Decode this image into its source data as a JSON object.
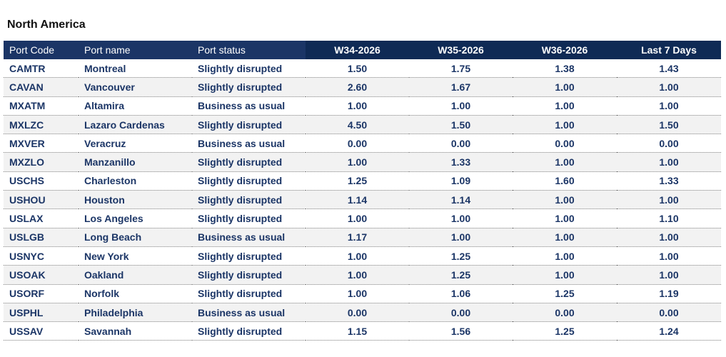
{
  "region": {
    "title": "North America"
  },
  "table": {
    "columns": [
      "Port Code",
      "Port name",
      "Port status",
      "W34-2026",
      "W35-2026",
      "W36-2026",
      "Last 7 Days"
    ],
    "rows": [
      {
        "code": "CAMTR",
        "name": "Montreal",
        "status": "Slightly disrupted",
        "w34": "1.50",
        "w35": "1.75",
        "w36": "1.38",
        "last7": "1.43"
      },
      {
        "code": "CAVAN",
        "name": "Vancouver",
        "status": "Slightly disrupted",
        "w34": "2.60",
        "w35": "1.67",
        "w36": "1.00",
        "last7": "1.00"
      },
      {
        "code": "MXATM",
        "name": "Altamira",
        "status": "Business as usual",
        "w34": "1.00",
        "w35": "1.00",
        "w36": "1.00",
        "last7": "1.00"
      },
      {
        "code": "MXLZC",
        "name": "Lazaro Cardenas",
        "status": "Slightly disrupted",
        "w34": "4.50",
        "w35": "1.50",
        "w36": "1.00",
        "last7": "1.50"
      },
      {
        "code": "MXVER",
        "name": "Veracruz",
        "status": "Business as usual",
        "w34": "0.00",
        "w35": "0.00",
        "w36": "0.00",
        "last7": "0.00"
      },
      {
        "code": "MXZLO",
        "name": "Manzanillo",
        "status": "Slightly disrupted",
        "w34": "1.00",
        "w35": "1.33",
        "w36": "1.00",
        "last7": "1.00"
      },
      {
        "code": "USCHS",
        "name": "Charleston",
        "status": "Slightly disrupted",
        "w34": "1.25",
        "w35": "1.09",
        "w36": "1.60",
        "last7": "1.33"
      },
      {
        "code": "USHOU",
        "name": "Houston",
        "status": "Slightly disrupted",
        "w34": "1.14",
        "w35": "1.14",
        "w36": "1.00",
        "last7": "1.00"
      },
      {
        "code": "USLAX",
        "name": "Los Angeles",
        "status": "Slightly disrupted",
        "w34": "1.00",
        "w35": "1.00",
        "w36": "1.00",
        "last7": "1.10"
      },
      {
        "code": "USLGB",
        "name": "Long Beach",
        "status": "Business as usual",
        "w34": "1.17",
        "w35": "1.00",
        "w36": "1.00",
        "last7": "1.00"
      },
      {
        "code": "USNYC",
        "name": "New York",
        "status": "Slightly disrupted",
        "w34": "1.00",
        "w35": "1.25",
        "w36": "1.00",
        "last7": "1.00"
      },
      {
        "code": "USOAK",
        "name": "Oakland",
        "status": "Slightly disrupted",
        "w34": "1.00",
        "w35": "1.25",
        "w36": "1.00",
        "last7": "1.00"
      },
      {
        "code": "USORF",
        "name": "Norfolk",
        "status": "Slightly disrupted",
        "w34": "1.00",
        "w35": "1.06",
        "w36": "1.25",
        "last7": "1.19"
      },
      {
        "code": "USPHL",
        "name": "Philadelphia",
        "status": "Business as usual",
        "w34": "0.00",
        "w35": "0.00",
        "w36": "0.00",
        "last7": "0.00"
      },
      {
        "code": "USSAV",
        "name": "Savannah",
        "status": "Slightly disrupted",
        "w34": "1.15",
        "w35": "1.56",
        "w36": "1.25",
        "last7": "1.24"
      }
    ]
  },
  "colors": {
    "header_left": "#1b3566",
    "header_right": "#0f2a55",
    "cell_text": "#1b3566",
    "row_stripe": "#f2f2f2"
  }
}
